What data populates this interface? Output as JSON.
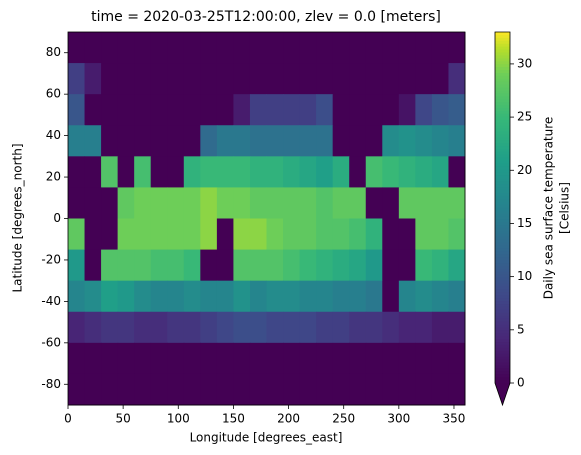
{
  "chart_data": {
    "type": "heatmap",
    "title": "time = 2020-03-25T12:00:00, zlev = 0.0 [meters]",
    "xlabel": "Longitude [degrees_east]",
    "ylabel": "Latitude [degrees_north]",
    "colorbar_label": [
      "Daily sea surface temperature",
      "[Celsius]"
    ],
    "colormap": "viridis",
    "x": [
      7.5,
      22.5,
      37.5,
      52.5,
      67.5,
      82.5,
      97.5,
      112.5,
      127.5,
      142.5,
      157.5,
      172.5,
      187.5,
      202.5,
      217.5,
      232.5,
      247.5,
      262.5,
      277.5,
      292.5,
      307.5,
      322.5,
      337.5,
      352.5
    ],
    "y": [
      82.5,
      67.5,
      52.5,
      37.5,
      22.5,
      7.5,
      -7.5,
      -22.5,
      -37.5,
      -52.5,
      -67.5,
      -82.5
    ],
    "z": [
      [
        0,
        0,
        0,
        0,
        0,
        0,
        0,
        0,
        0,
        0,
        0,
        0,
        0,
        0,
        0,
        0,
        0,
        0,
        0,
        0,
        0,
        0,
        0,
        0
      ],
      [
        7,
        3,
        0,
        0,
        0,
        0,
        0,
        0,
        0,
        0,
        0,
        0,
        0,
        0,
        0,
        0,
        0,
        0,
        0,
        0,
        0,
        0,
        0,
        5
      ],
      [
        10,
        0,
        0,
        0,
        0,
        0,
        0,
        0,
        0,
        0,
        3,
        7,
        7,
        7,
        7,
        9,
        0,
        0,
        0,
        0,
        2,
        8,
        10,
        11
      ],
      [
        16,
        16,
        0,
        0,
        0,
        0,
        0,
        0,
        13,
        15,
        15,
        14,
        14,
        14,
        14,
        14,
        0,
        0,
        0,
        18,
        19,
        18,
        17,
        16
      ],
      [
        0,
        0,
        27,
        0,
        26,
        0,
        0,
        24,
        25,
        25,
        25,
        24,
        24,
        23,
        22,
        21,
        23,
        0,
        26,
        25,
        24,
        23,
        22,
        0
      ],
      [
        0,
        0,
        0,
        28,
        29,
        29,
        29,
        29,
        30,
        29,
        29,
        28,
        28,
        28,
        28,
        27,
        28,
        28,
        0,
        0,
        28,
        28,
        28,
        28
      ],
      [
        28,
        0,
        0,
        29,
        29,
        29,
        29,
        29,
        30,
        0,
        30,
        30,
        29,
        28,
        28,
        27,
        27,
        26,
        24,
        0,
        0,
        28,
        28,
        27
      ],
      [
        20,
        0,
        27,
        27,
        27,
        26,
        26,
        25,
        0,
        0,
        27,
        27,
        27,
        26,
        25,
        24,
        23,
        22,
        20,
        0,
        0,
        25,
        24,
        22
      ],
      [
        17,
        18,
        21,
        20,
        18,
        17,
        17,
        18,
        17,
        17,
        19,
        17,
        18,
        18,
        17,
        17,
        16,
        16,
        15,
        0,
        17,
        18,
        17,
        16
      ],
      [
        4,
        5,
        6,
        6,
        5,
        5,
        6,
        6,
        7,
        8,
        9,
        9,
        8,
        8,
        8,
        7,
        7,
        6,
        6,
        5,
        4,
        4,
        3,
        3
      ],
      [
        0,
        0,
        0,
        0,
        0,
        0,
        0,
        0,
        0,
        0,
        0,
        0,
        0,
        0,
        0,
        0,
        0,
        0,
        0,
        0,
        0,
        0,
        0,
        0
      ],
      [
        0,
        0,
        0,
        0,
        0,
        0,
        0,
        0,
        0,
        0,
        0,
        0,
        0,
        0,
        0,
        0,
        0,
        0,
        0,
        0,
        0,
        0,
        0,
        0
      ]
    ],
    "xlim": [
      0,
      360
    ],
    "xticks": [
      0,
      50,
      100,
      150,
      200,
      250,
      300,
      350
    ],
    "ylim": [
      -90,
      90
    ],
    "yticks": [
      -80,
      -60,
      -40,
      -20,
      0,
      20,
      40,
      60,
      80
    ],
    "clim": [
      0,
      33
    ],
    "cticks": [
      0,
      5,
      10,
      15,
      20,
      25,
      30
    ]
  }
}
